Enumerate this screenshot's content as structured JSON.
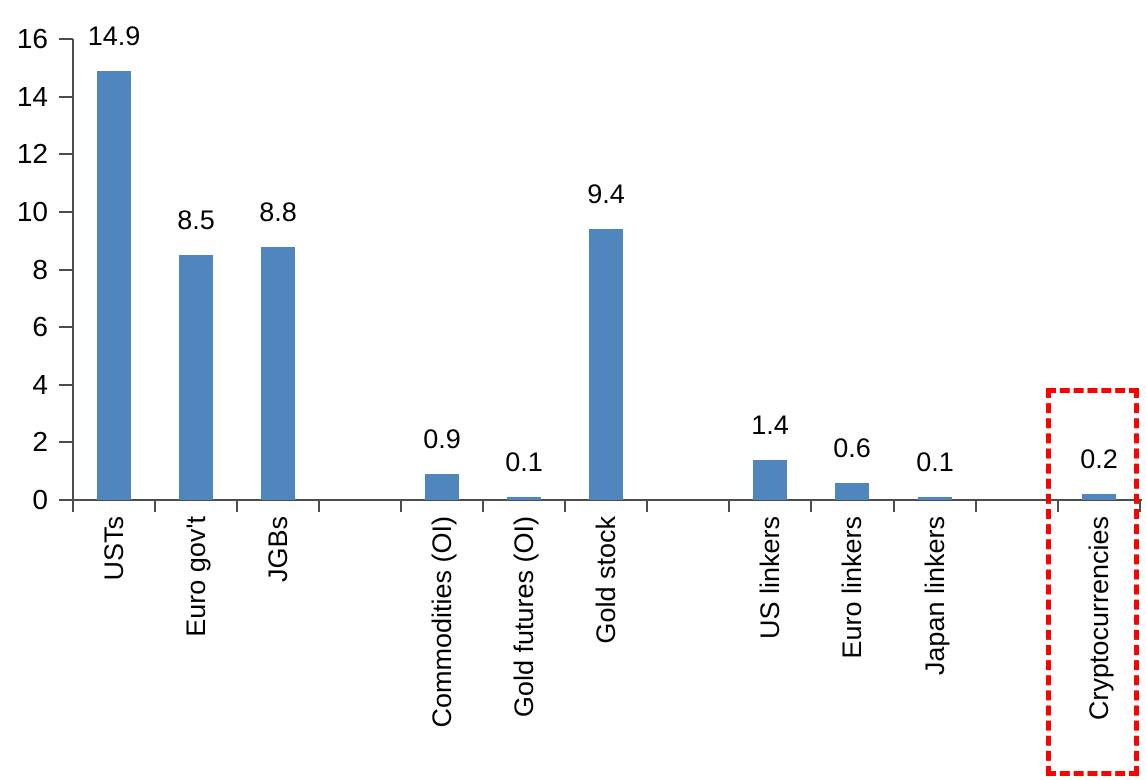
{
  "chart_data": {
    "type": "bar",
    "title": "",
    "xlabel": "",
    "ylabel": "",
    "categories": [
      "USTs",
      "Euro gov't",
      "JGBs",
      "Commodities (OI)",
      "Gold futures (OI)",
      "Gold stock",
      "US linkers",
      "Euro linkers",
      "Japan linkers",
      "Cryptocurrencies"
    ],
    "values": [
      14.9,
      8.5,
      8.8,
      0.9,
      0.1,
      9.4,
      1.4,
      0.6,
      0.1,
      0.2
    ],
    "value_labels": [
      "14.9",
      "8.5",
      "8.8",
      "0.9",
      "0.1",
      "9.4",
      "1.4",
      "0.6",
      "0.1",
      "0.2"
    ],
    "groups": [
      [
        "USTs",
        "Euro gov't",
        "JGBs"
      ],
      [
        "Commodities (OI)",
        "Gold futures (OI)",
        "Gold stock"
      ],
      [
        "US linkers",
        "Euro linkers",
        "Japan linkers"
      ],
      [
        "Cryptocurrencies"
      ]
    ],
    "slot_positions": [
      0,
      1,
      2,
      4,
      5,
      6,
      8,
      9,
      10,
      12
    ],
    "total_slots": 13,
    "ylim": [
      0,
      16
    ],
    "yticks": [
      0,
      2,
      4,
      6,
      8,
      10,
      12,
      14,
      16
    ],
    "grid": "off",
    "legend": "none",
    "bar_color": "#4e86bd",
    "axis_color": "#4d4d4d",
    "highlight": {
      "category": "Cryptocurrencies",
      "box_color": "#ff0000",
      "style": "dotted-rectangle"
    }
  }
}
